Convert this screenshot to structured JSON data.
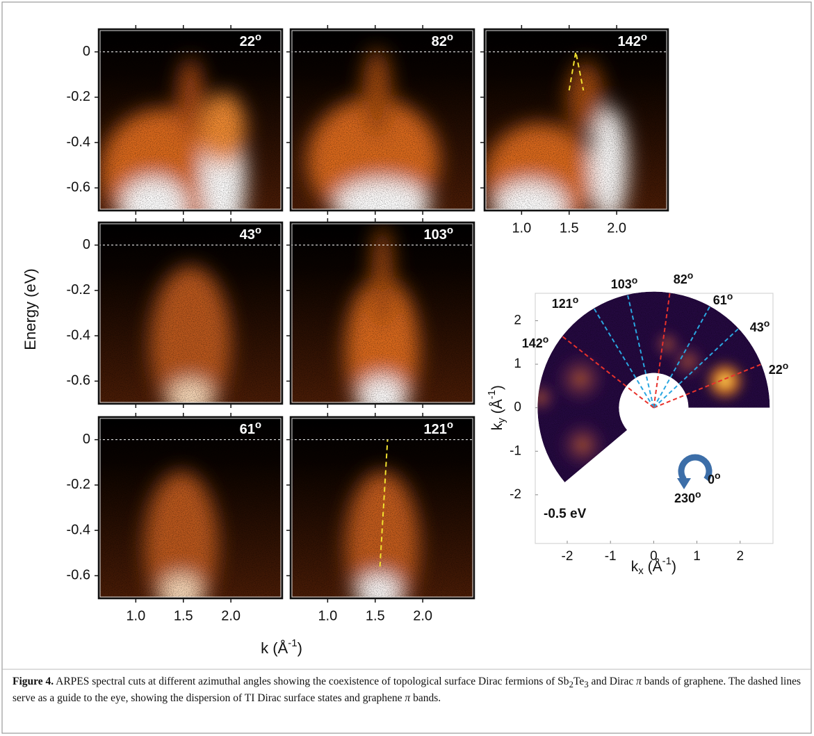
{
  "figure": {
    "arpes": {
      "ylabel": "Energy (eV)",
      "xlabel": {
        "start": "k (Å",
        "sup": "-1",
        "end": ")"
      },
      "ylim": [
        -0.7,
        0.1
      ],
      "yticks": [
        0,
        -0.2,
        -0.4,
        -0.6
      ],
      "xlim": [
        0.61,
        2.54
      ],
      "xticks": [
        {
          "value": 1,
          "label": "1.0"
        },
        1.5,
        {
          "value": 2,
          "label": "2.0"
        }
      ],
      "degree": "o",
      "panels": [
        {
          "angle": "22"
        },
        {
          "angle": "82"
        },
        {
          "angle": "142"
        },
        {
          "angle": "43"
        },
        {
          "angle": "103"
        },
        {
          "angle": "61"
        },
        {
          "angle": "121"
        }
      ]
    },
    "map": {
      "xlabel": {
        "start": "k",
        "sub": "x",
        "mid": " (Å",
        "sup": "-1",
        "end": ")"
      },
      "ylabel": {
        "start": "k",
        "sub": "y",
        "mid": " (Å",
        "sup": "-1",
        "end": ")"
      },
      "xlim": [
        -2.74,
        2.76
      ],
      "ylim": [
        -3.12,
        2.63
      ],
      "xticks": [
        -2,
        -1,
        0,
        1,
        2
      ],
      "yticks": [
        2,
        1,
        0,
        -1,
        -2
      ],
      "cuts": [
        {
          "angle": 22,
          "color": "#e8322c"
        },
        {
          "angle": 43,
          "color": "#2aa6e0"
        },
        {
          "angle": 61,
          "color": "#2aa6e0"
        },
        {
          "angle": 82,
          "color": "#e8322c"
        },
        {
          "angle": 103,
          "color": "#2aa6e0"
        },
        {
          "angle": 121,
          "color": "#2aa6e0"
        },
        {
          "angle": 142,
          "color": "#e8322c"
        }
      ],
      "energy": "-0.5 eV",
      "rotation": {
        "start": "0",
        "end": "230"
      }
    }
  },
  "caption": {
    "label": "Figure 4.",
    "text1": " ARPES spectral cuts at different azimuthal angles showing the coexistence of topological surface Dirac fermions of Sb",
    "sub1": "2",
    "text2": "Te",
    "sub2": "3",
    "text3": " and Dirac ",
    "pi": "π",
    "text4": " bands of graphene. The dashed lines serve as a guide to the eye, showing the dispersion of TI Dirac surface states and graphene ",
    "text5": " bands."
  }
}
